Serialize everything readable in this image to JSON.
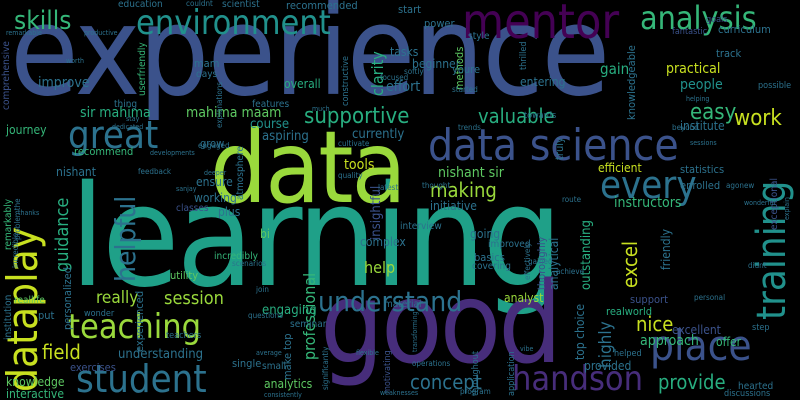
{
  "words": {
    "experience": "experience",
    "learning": "learning",
    "data": "data",
    "good": "good",
    "data_science": "data science",
    "environment": "environment",
    "mentor": "mentor",
    "analysis": "analysis",
    "skills": "skills",
    "great": "great",
    "every": "every",
    "place": "place",
    "training": "training",
    "student": "student",
    "teaching": "teaching",
    "dataplay": "dataplay",
    "handson": "handson",
    "understand": "understand",
    "supportive": "supportive",
    "valuable": "valuable",
    "helpful": "helpful",
    "session": "session",
    "work": "work",
    "easy": "easy",
    "field": "field",
    "concept": "concept",
    "provide": "provide",
    "sir_mahima": "sir mahima",
    "mahima_maam": "mahima maam",
    "nishant_sir": "nishant sir",
    "making": "making",
    "really": "really",
    "help": "help",
    "excel": "excel",
    "nice": "nice",
    "guidance": "guidance",
    "professional": "professional",
    "analyst": "analyst",
    "highly": "highly",
    "approach": "approach",
    "instructors": "instructors",
    "institute": "institute",
    "improve": "improve",
    "gain": "gain",
    "people": "people",
    "practical": "practical",
    "clarity": "clarity",
    "effort": "effort",
    "overall": "overall",
    "course": "course",
    "aspiring": "aspiring",
    "currently": "currently",
    "tools": "tools",
    "complex": "complex",
    "understanding": "understanding",
    "engaging": "engaging",
    "knowledge": "knowledge",
    "interactive": "interactive",
    "provided": "provided",
    "offer": "offer",
    "excellent": "excellent",
    "support": "support",
    "realworld": "realworld",
    "outstanding": "outstanding",
    "efficient": "efficient",
    "statistics": "statistics",
    "enrolled": "enrolled",
    "friendly": "friendly",
    "analytical": "analytical",
    "beginner": "beginner",
    "tasks": "tasks",
    "entering": "entering",
    "journey": "journey",
    "recommend": "recommend",
    "nishant": "nishant",
    "ensure": "ensure",
    "working": "working",
    "bi": "bi",
    "plus": "plus",
    "classes": "classes",
    "exercises": "exercises",
    "analytics": "analytics",
    "single": "single",
    "small": "small",
    "seminar": "seminar",
    "going": "going",
    "basics": "basics",
    "initiative": "initiative",
    "insightful": "insightful",
    "interview": "interview",
    "improved": "improved",
    "covering": "covering",
    "education": "education",
    "recommended": "recommended",
    "scientist": "scientist",
    "start": "start",
    "power": "power",
    "methods": "methods",
    "style": "style",
    "curriculum": "curriculum",
    "track": "track",
    "possible": "possible",
    "knowledgeable": "knowledgeable",
    "comprehensive": "comprehensive",
    "remarkably": "remarkably",
    "institution": "institution",
    "reallife": "reallife",
    "put": "put",
    "wonder": "wonder",
    "features": "features",
    "thing": "thing",
    "mam": "mam",
    "days": "days",
    "grow": "grow",
    "utility": "utility",
    "experienced": "experienced",
    "personalized": "personalized",
    "top_choice": "top choice",
    "thoroughly": "thoroughly",
    "truly": "truly",
    "make_top": "make top",
    "material": "material",
    "helped": "helped",
    "hearted": "hearted",
    "discussions": "discussions",
    "application": "application",
    "throughout": "throughout",
    "youre": "youre",
    "teachers": "teachers",
    "atmosphere": "atmosphere",
    "incredibly": "incredibly",
    "constructive": "constructive",
    "goals": "goals",
    "fantastic": "fantastic",
    "thrilled": "thrilled",
    "userfriendly": "userfriendly",
    "dedicated": "dedicated",
    "motivating": "motivating",
    "engaged": "engaged",
    "quality": "quality",
    "cultivate": "cultivate",
    "wonderful": "wonderful",
    "exceptional": "exceptional",
    "towards": "towards",
    "softly": "softly",
    "personal": "personal",
    "didnt": "didnt",
    "achieve": "achieve",
    "gained": "gained",
    "route": "route",
    "thought": "thought",
    "scenarios": "scenarios",
    "questions": "questions",
    "join": "join",
    "average": "average",
    "latest": "latest",
    "step": "step",
    "beyond": "beyond",
    "explain": "explain",
    "trends": "trends",
    "focused": "focused",
    "incredible": "incredible",
    "explanations": "explanations",
    "feedback": "feedback",
    "developments": "developments",
    "couldnt": "couldnt",
    "productive": "productive",
    "started": "started",
    "worth": "worth",
    "agonew": "agonew",
    "problemthe": "problemthe",
    "stay": "stay",
    "sanjay": "sanjay",
    "vibe": "vibe",
    "deeper": "deeper",
    "much": "much",
    "operations": "operations",
    "significantly": "significantly",
    "effectively": "effectively",
    "weaknesses": "weaknesses",
    "program": "program",
    "consistently": "consistently",
    "flexible": "flexible",
    "thanks": "thanks",
    "sessions": "sessions",
    "remarkable": "remarkable",
    "helping": "helping",
    "transforming": "transforming"
  },
  "colors": {
    "yellow": "#c8e020",
    "lime": "#9ad93c",
    "green": "#5ec962",
    "teal_green": "#28ae80",
    "teal": "#21918c",
    "blue_teal": "#2c728e",
    "blue": "#3b528b",
    "indigo": "#472d7b",
    "purple": "#440154",
    "mid_teal": "#1fa088",
    "soft_green": "#35b779",
    "gold": "#fde725"
  }
}
